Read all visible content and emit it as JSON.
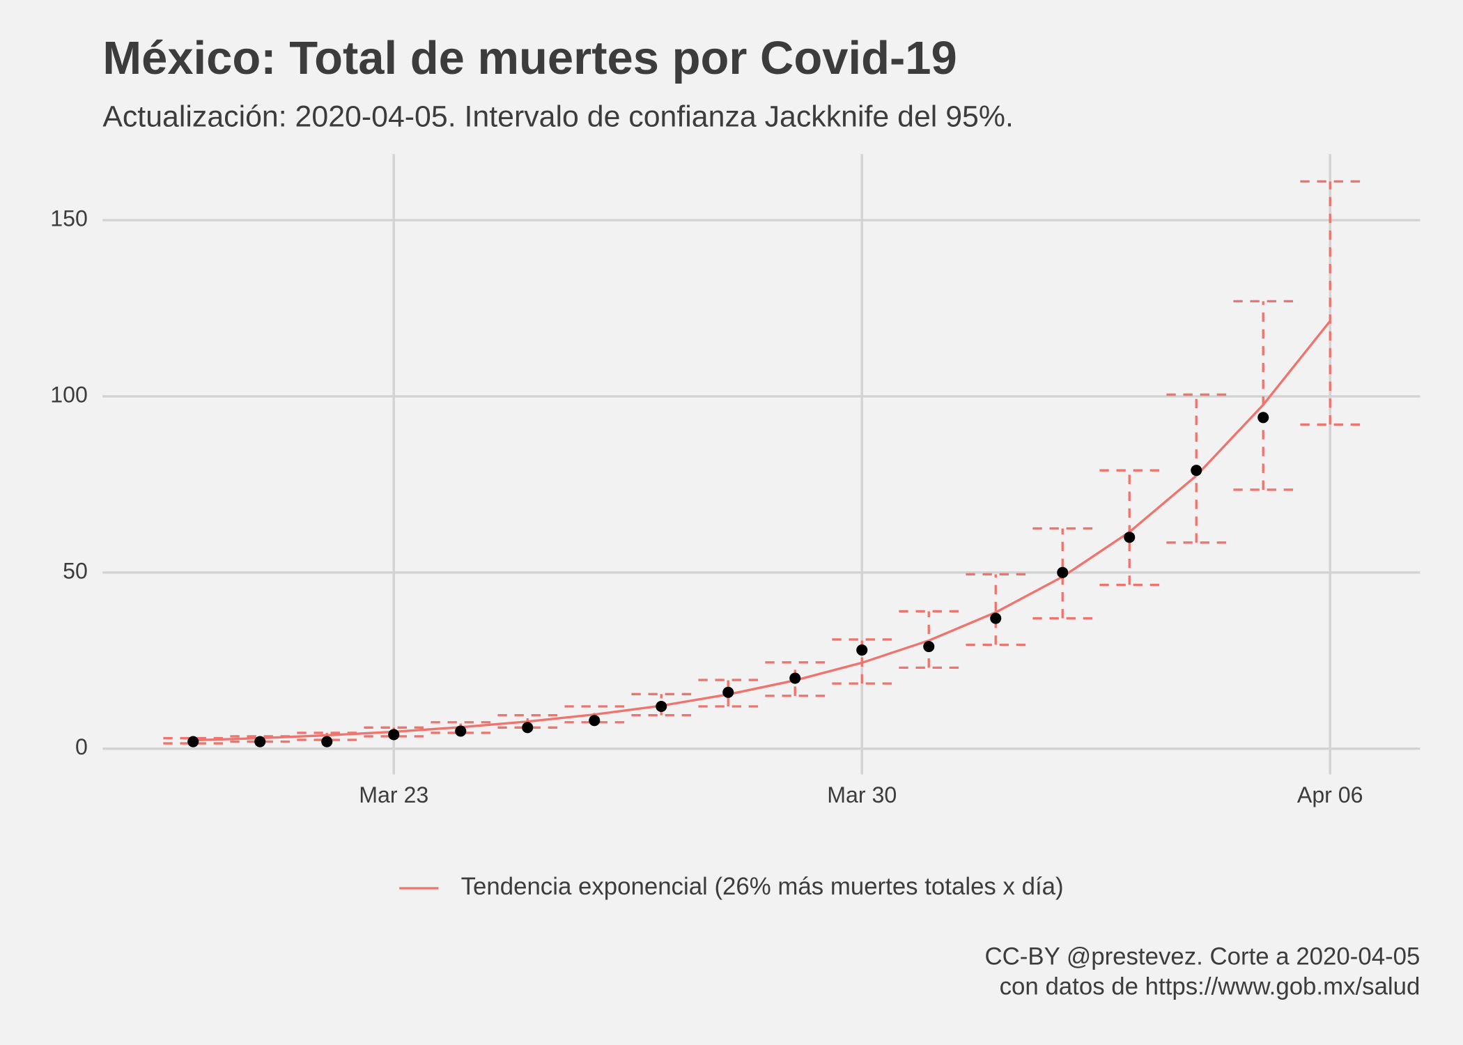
{
  "chart_data": {
    "type": "line",
    "title": "México: Total de muertes por Covid-19",
    "subtitle": "Actualización: 2020-04-05. Intervalo de confianza Jackknife del 95%.",
    "caption": [
      "CC-BY @prestevez. Corte a 2020-04-05",
      "con datos de https://www.gob.mx/salud"
    ],
    "x": [
      "Mar 20",
      "Mar 21",
      "Mar 22",
      "Mar 23",
      "Mar 24",
      "Mar 25",
      "Mar 26",
      "Mar 27",
      "Mar 28",
      "Mar 29",
      "Mar 30",
      "Mar 31",
      "Apr 01",
      "Apr 02",
      "Apr 03",
      "Apr 04",
      "Apr 05",
      "Apr 06"
    ],
    "xticks": [
      "Mar 23",
      "Mar 30",
      "Apr 06"
    ],
    "ylim": [
      -7.3,
      168.8
    ],
    "yticks": [
      0,
      50,
      100,
      150
    ],
    "grid": true,
    "legend": "bottom",
    "series": [
      {
        "name": "Tendencia exponencial (26% más muertes totales x día)",
        "color": "#f0746e",
        "values": [
          2.4,
          3.0,
          3.8,
          4.8,
          6.1,
          7.7,
          9.7,
          12.2,
          15.4,
          19.4,
          24.4,
          30.7,
          38.7,
          48.8,
          61.5,
          77.5,
          97.6,
          121.4
        ]
      }
    ],
    "points": {
      "color": "#000000",
      "values": [
        2,
        2,
        2,
        4,
        5,
        6,
        8,
        12,
        16,
        20,
        28,
        29,
        37,
        50,
        60,
        79,
        94,
        null
      ]
    },
    "error_bars": {
      "color": "#f0746e",
      "lower": [
        1.5,
        2,
        2.5,
        3.5,
        4.5,
        6,
        7.5,
        9.5,
        12,
        15,
        18.5,
        23,
        29.5,
        37,
        46.5,
        58.5,
        73.5,
        92
      ],
      "upper": [
        3,
        3.5,
        4.5,
        6,
        7.5,
        9.5,
        12,
        15.5,
        19.5,
        24.5,
        31,
        39,
        49.5,
        62.5,
        79,
        100.5,
        127,
        161
      ]
    }
  }
}
